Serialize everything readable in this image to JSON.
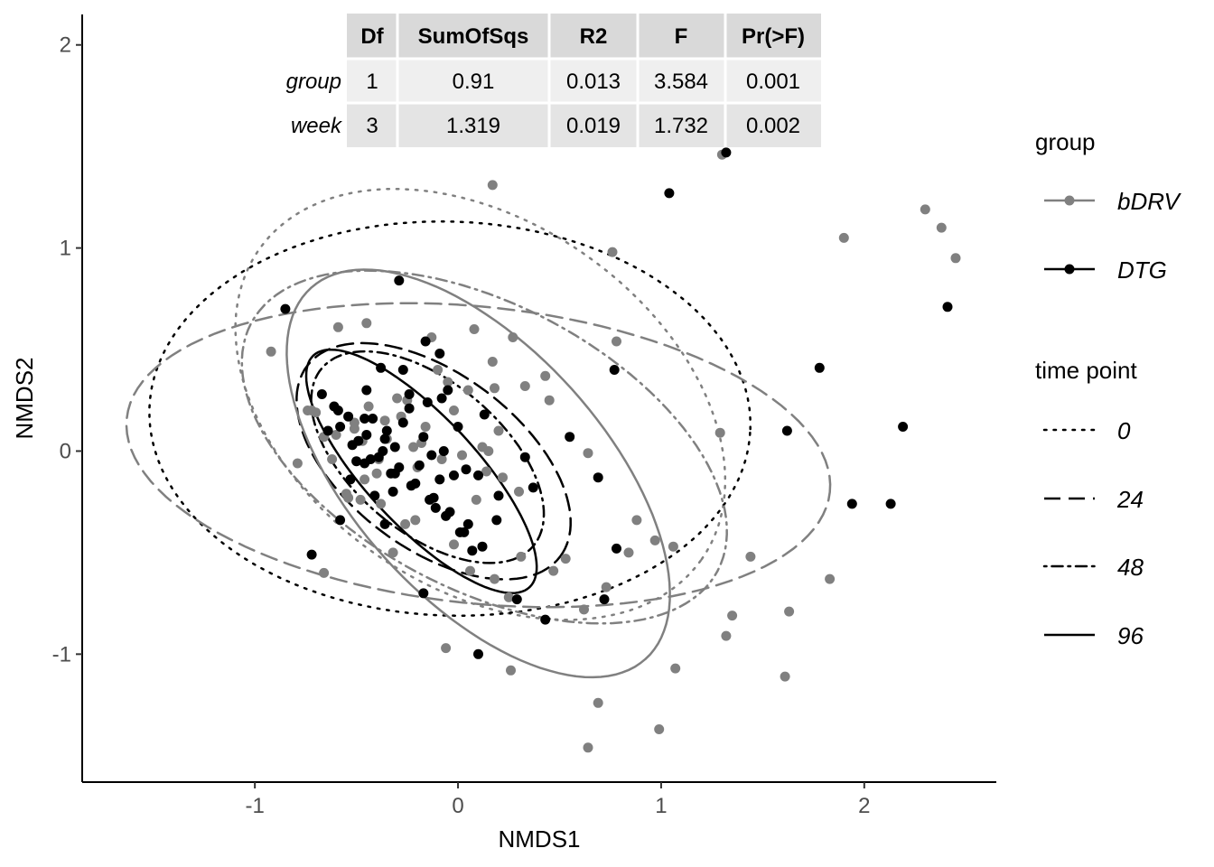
{
  "chart_data": {
    "type": "scatter",
    "title": "",
    "xlabel": "NMDS1",
    "ylabel": "NMDS2",
    "xlim": [
      -1.85,
      2.65
    ],
    "ylim": [
      -1.63,
      2.15
    ],
    "x_ticks": [
      -1,
      0,
      1,
      2
    ],
    "y_ticks": [
      -1,
      0,
      1,
      2
    ],
    "grid": false,
    "colors": {
      "bDRV": "#808080",
      "DTG": "#000000"
    },
    "legend": {
      "placement": "right",
      "group_title": "group",
      "group_items": [
        "bDRV",
        "DTG"
      ],
      "time_title": "time point",
      "time_items": [
        {
          "label": "0",
          "linetype": "dotted"
        },
        {
          "label": "24",
          "linetype": "dashed"
        },
        {
          "label": "48",
          "linetype": "dotdash"
        },
        {
          "label": "96",
          "linetype": "solid"
        }
      ]
    },
    "permanova_table": {
      "columns": [
        "Df",
        "SumOfSqs",
        "R2",
        "F",
        "Pr(>F)"
      ],
      "rows": [
        {
          "name": "group",
          "values": [
            "1",
            "0.91",
            "0.013",
            "3.584",
            "0.001"
          ]
        },
        {
          "name": "week",
          "values": [
            "3",
            "1.319",
            "0.019",
            "1.732",
            "0.002"
          ]
        }
      ]
    },
    "ellipses": [
      {
        "group": "bDRV",
        "time": "0",
        "cx": 0.11,
        "cy": 0.23,
        "a": 1.33,
        "b": 0.9,
        "angle_deg": -35
      },
      {
        "group": "DTG",
        "time": "0",
        "cx": -0.04,
        "cy": 0.16,
        "a": 1.48,
        "b": 0.97,
        "angle_deg": -2
      },
      {
        "group": "bDRV",
        "time": "24",
        "cx": 0.1,
        "cy": -0.02,
        "a": 1.74,
        "b": 0.73,
        "angle_deg": -6
      },
      {
        "group": "DTG",
        "time": "24",
        "cx": -0.12,
        "cy": -0.05,
        "a": 0.78,
        "b": 0.43,
        "angle_deg": -37
      },
      {
        "group": "bDRV",
        "time": "48",
        "cx": 0.13,
        "cy": 0.02,
        "a": 1.3,
        "b": 0.7,
        "angle_deg": -28
      },
      {
        "group": "DTG",
        "time": "48",
        "cx": -0.15,
        "cy": -0.03,
        "a": 0.68,
        "b": 0.37,
        "angle_deg": -40
      },
      {
        "group": "bDRV",
        "time": "96",
        "cx": 0.1,
        "cy": -0.11,
        "a": 1.23,
        "b": 0.62,
        "angle_deg": -48
      },
      {
        "group": "DTG",
        "time": "96",
        "cx": -0.18,
        "cy": -0.1,
        "a": 0.78,
        "b": 0.27,
        "angle_deg": -47
      }
    ],
    "series": [
      {
        "name": "bDRV",
        "x": [
          0.17,
          1.3,
          1.9,
          2.3,
          2.38,
          2.45,
          0.76,
          0.78,
          0.17,
          -0.59,
          -0.45,
          -0.13,
          0.08,
          0.43,
          0.27,
          -0.72,
          -0.51,
          -0.25,
          0.05,
          0.18,
          0.33,
          0.45,
          0.64,
          0.88,
          0.97,
          1.06,
          1.29,
          1.44,
          1.63,
          1.83,
          1.61,
          1.35,
          1.32,
          0.84,
          0.73,
          0.62,
          0.53,
          0.47,
          0.31,
          0.25,
          0.18,
          0.06,
          -0.02,
          -0.21,
          -0.32,
          -0.48,
          -0.62,
          -0.79,
          -0.92,
          0.99,
          1.07,
          0.69,
          0.64,
          -0.06,
          0.26,
          0.14,
          0.22,
          -0.39,
          -0.35,
          -0.28,
          -0.18,
          -0.08,
          0.02,
          -0.46,
          -0.54,
          -0.66,
          -0.74,
          -0.38,
          -0.26,
          -0.51,
          -0.44,
          -0.3,
          -0.16,
          -0.02,
          0.12,
          0.2,
          -0.1,
          -0.7,
          -0.6,
          -0.4,
          0.3,
          0.15,
          -0.55,
          -0.36,
          -0.2,
          -0.05,
          0.09,
          -0.22,
          -0.47,
          -0.66
        ],
        "y": [
          1.31,
          1.46,
          1.05,
          1.19,
          1.1,
          0.95,
          0.98,
          0.54,
          0.44,
          0.61,
          0.63,
          0.56,
          0.6,
          0.37,
          0.56,
          0.2,
          0.11,
          0.25,
          0.3,
          0.31,
          0.32,
          0.25,
          -0.01,
          -0.34,
          -0.44,
          -0.47,
          0.09,
          -0.52,
          -0.79,
          -0.63,
          -1.11,
          -0.81,
          -0.91,
          -0.5,
          -0.67,
          -0.78,
          -0.53,
          -0.59,
          -0.52,
          -0.72,
          -0.63,
          -0.59,
          -0.46,
          -0.34,
          -0.5,
          -0.24,
          -0.04,
          -0.06,
          0.49,
          -1.37,
          -1.07,
          -1.24,
          -1.46,
          -0.97,
          -1.08,
          -0.1,
          -0.13,
          -0.04,
          0.06,
          0.17,
          0.04,
          -0.04,
          -0.02,
          -0.14,
          -0.23,
          0.07,
          0.2,
          -0.26,
          -0.36,
          0.14,
          0.22,
          0.26,
          0.12,
          0.2,
          0.02,
          0.1,
          0.4,
          0.19,
          0.08,
          -0.11,
          -0.2,
          0.0,
          -0.21,
          0.15,
          -0.08,
          0.34,
          -0.24,
          0.02,
          0.05,
          -0.6
        ]
      },
      {
        "name": "DTG",
        "x": [
          1.32,
          1.04,
          2.41,
          1.78,
          2.19,
          1.94,
          2.13,
          1.62,
          0.78,
          0.77,
          0.72,
          0.43,
          0.1,
          -0.29,
          -0.85,
          -0.16,
          -0.09,
          0.55,
          0.69,
          0.29,
          0.07,
          -0.17,
          -0.36,
          -0.58,
          -0.72,
          -0.5,
          -0.32,
          -0.11,
          0.01,
          0.19,
          0.37,
          -0.64,
          -0.45,
          -0.27,
          -0.08,
          0.13,
          0.33,
          -0.67,
          -0.35,
          -0.24,
          -0.13,
          -0.02,
          -0.42,
          -0.31,
          -0.52,
          -0.43,
          -0.33,
          -0.23,
          -0.12,
          -0.04,
          0.05,
          -0.61,
          -0.54,
          -0.45,
          -0.37,
          -0.29,
          -0.21,
          -0.14,
          -0.06,
          0.03,
          0.12,
          -0.58,
          -0.49,
          -0.39,
          -0.31,
          -0.19,
          -0.09,
          -0.46,
          -0.36,
          -0.27,
          -0.17,
          -0.07,
          0.04,
          0.2,
          -0.53,
          -0.41,
          -0.24,
          0.1,
          -0.59,
          -0.15,
          -0.05,
          0.0,
          -0.38,
          -0.46
        ],
        "y": [
          1.47,
          1.27,
          0.71,
          0.41,
          0.12,
          -0.26,
          -0.26,
          0.1,
          -0.48,
          0.4,
          -0.73,
          -0.83,
          -1.0,
          0.84,
          0.7,
          0.54,
          0.48,
          0.07,
          -0.13,
          -0.73,
          -0.49,
          -0.7,
          -0.36,
          -0.34,
          -0.51,
          -0.05,
          -0.2,
          -0.28,
          -0.4,
          -0.34,
          -0.18,
          0.1,
          0.3,
          0.4,
          0.26,
          0.18,
          -0.03,
          0.28,
          0.1,
          0.21,
          -0.02,
          -0.12,
          0.16,
          0.02,
          0.03,
          -0.04,
          -0.11,
          -0.17,
          -0.23,
          -0.3,
          -0.36,
          0.22,
          0.17,
          0.08,
          0.0,
          -0.08,
          -0.16,
          -0.24,
          -0.32,
          -0.4,
          -0.47,
          0.12,
          0.05,
          -0.03,
          -0.11,
          -0.07,
          -0.14,
          0.16,
          0.06,
          0.14,
          0.07,
          0.0,
          -0.09,
          -0.22,
          -0.14,
          -0.22,
          0.28,
          -0.12,
          0.2,
          0.24,
          0.3,
          0.12,
          0.41,
          -0.06
        ]
      }
    ]
  }
}
